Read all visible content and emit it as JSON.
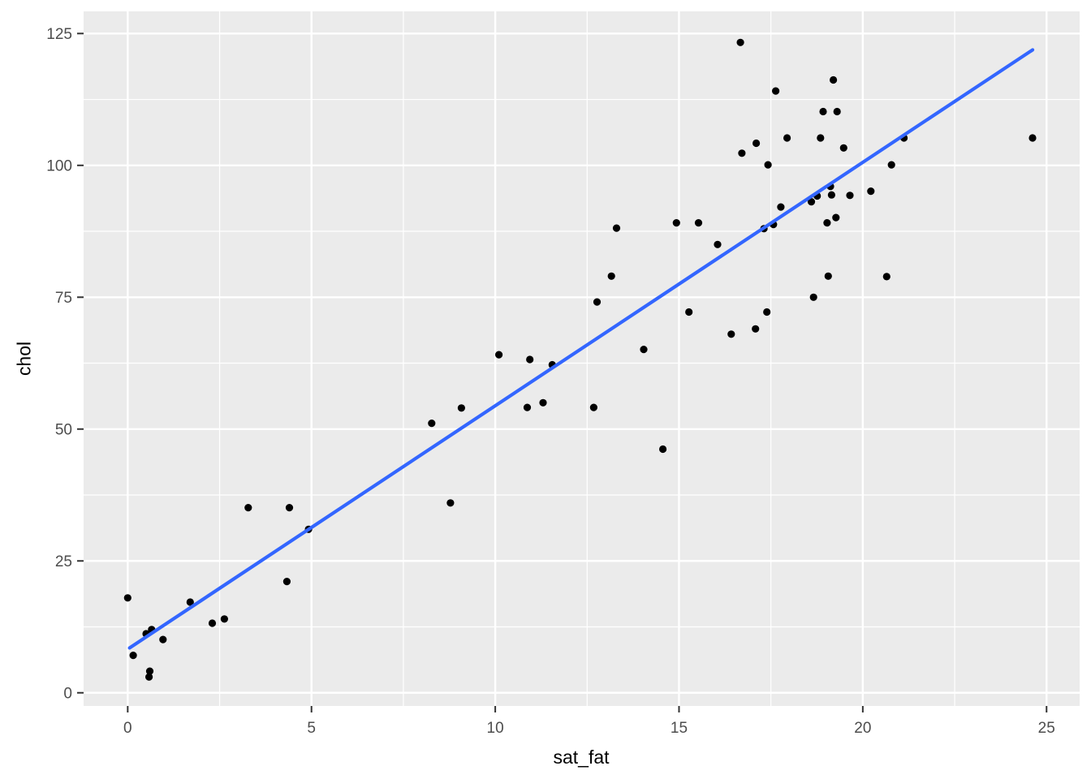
{
  "chart_data": {
    "type": "scatter",
    "title": "",
    "xlabel": "sat_fat",
    "ylabel": "chol",
    "xlim": [
      -1.2,
      25.9
    ],
    "ylim": [
      -2.5,
      129.2
    ],
    "x_ticks": [
      0,
      5,
      10,
      15,
      20,
      25
    ],
    "y_ticks": [
      0,
      25,
      50,
      75,
      100,
      125
    ],
    "x_minor_ticks": [
      2.5,
      7.5,
      12.5,
      17.5,
      22.5
    ],
    "y_minor_ticks": [
      12.5,
      37.5,
      62.5,
      87.5,
      112.5
    ],
    "grid": true,
    "legend": "none",
    "colors": {
      "panel_bg": "#EBEBEB",
      "grid": "#FFFFFF",
      "point": "#000000",
      "trend_line": "#3366FF",
      "tick_mark": "#333333",
      "tick_label": "#4D4D4D",
      "axis_title": "#000000"
    },
    "points": [
      [
        0.0,
        18.0
      ],
      [
        0.15,
        7.1
      ],
      [
        0.5,
        11.2
      ],
      [
        0.58,
        3.0
      ],
      [
        0.6,
        4.1
      ],
      [
        0.65,
        12.0
      ],
      [
        0.96,
        10.1
      ],
      [
        1.7,
        17.2
      ],
      [
        2.3,
        13.2
      ],
      [
        2.63,
        14.0
      ],
      [
        3.28,
        35.1
      ],
      [
        4.33,
        21.1
      ],
      [
        4.4,
        35.1
      ],
      [
        4.92,
        31.0
      ],
      [
        8.27,
        51.1
      ],
      [
        8.78,
        36.0
      ],
      [
        9.08,
        54.0
      ],
      [
        10.1,
        64.1
      ],
      [
        10.87,
        54.1
      ],
      [
        10.94,
        63.2
      ],
      [
        11.3,
        55.0
      ],
      [
        11.55,
        62.2
      ],
      [
        12.68,
        54.1
      ],
      [
        12.77,
        74.1
      ],
      [
        13.16,
        79.0
      ],
      [
        13.3,
        88.1
      ],
      [
        14.04,
        65.1
      ],
      [
        14.56,
        46.2
      ],
      [
        14.93,
        89.1
      ],
      [
        15.27,
        72.2
      ],
      [
        15.53,
        89.1
      ],
      [
        16.05,
        85.0
      ],
      [
        16.42,
        68.0
      ],
      [
        16.67,
        123.3
      ],
      [
        16.71,
        102.3
      ],
      [
        17.08,
        69.0
      ],
      [
        17.1,
        104.2
      ],
      [
        17.31,
        88.0
      ],
      [
        17.39,
        72.2
      ],
      [
        17.42,
        100.1
      ],
      [
        17.57,
        88.8
      ],
      [
        17.63,
        114.1
      ],
      [
        17.77,
        92.1
      ],
      [
        17.94,
        105.2
      ],
      [
        18.6,
        93.1
      ],
      [
        18.66,
        75.0
      ],
      [
        18.76,
        94.2
      ],
      [
        18.85,
        105.2
      ],
      [
        18.92,
        110.2
      ],
      [
        19.03,
        89.1
      ],
      [
        19.06,
        79.0
      ],
      [
        19.12,
        96.0
      ],
      [
        19.15,
        94.4
      ],
      [
        19.2,
        116.2
      ],
      [
        19.27,
        90.1
      ],
      [
        19.3,
        110.2
      ],
      [
        19.48,
        103.3
      ],
      [
        19.65,
        94.3
      ],
      [
        20.22,
        95.1
      ],
      [
        20.65,
        78.9
      ],
      [
        20.78,
        100.1
      ],
      [
        21.12,
        105.2
      ],
      [
        24.62,
        105.2
      ]
    ],
    "trend_line": {
      "type": "linear",
      "x1": 0.05,
      "y1": 8.5,
      "x2": 24.62,
      "y2": 121.9
    }
  }
}
